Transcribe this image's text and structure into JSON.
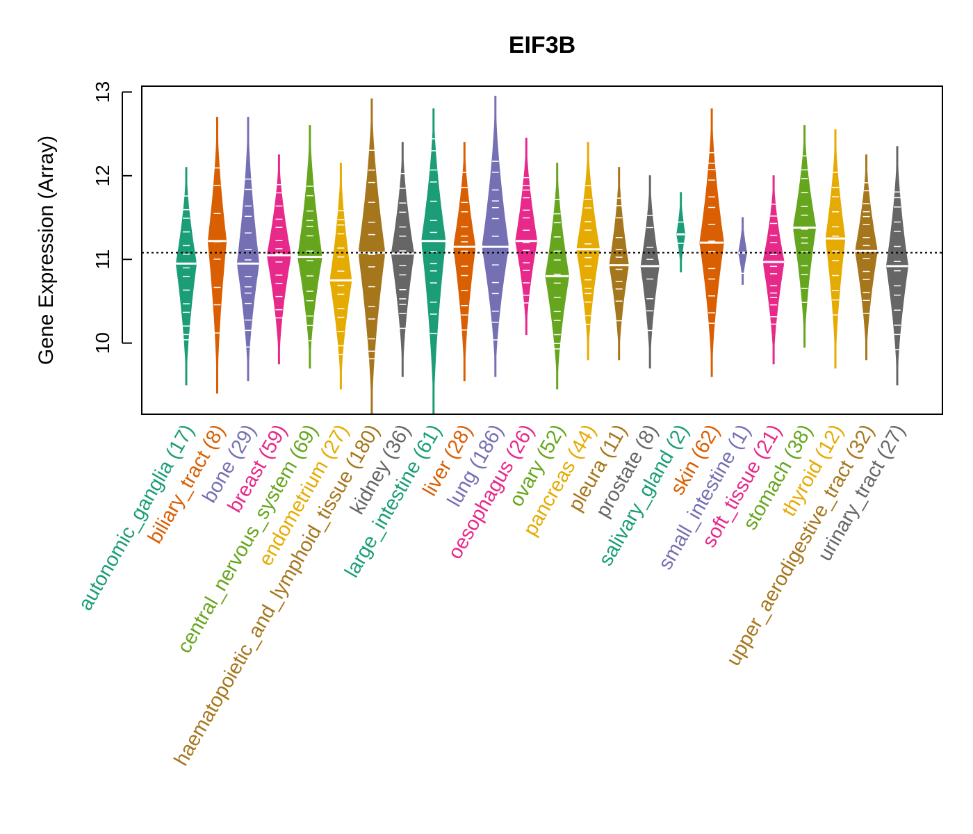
{
  "chart_data": {
    "type": "violin",
    "title": "EIF3B",
    "xlabel": "",
    "ylabel": "Gene Expression (Array)",
    "ylim": [
      9.15,
      13.07
    ],
    "yticks": [
      10,
      11,
      12,
      13
    ],
    "reference_line": 11.08,
    "grid": false,
    "categories": [
      {
        "name": "autonomic_ganglia",
        "n": 17,
        "label": "autonomic_ganglia (17)",
        "color": "#1B9E77",
        "median": 10.95,
        "min": 9.5,
        "max": 12.1
      },
      {
        "name": "biliary_tract",
        "n": 8,
        "label": "biliary_tract (8)",
        "color": "#D95F02",
        "median": 11.22,
        "min": 9.4,
        "max": 12.7
      },
      {
        "name": "bone",
        "n": 29,
        "label": "bone (29)",
        "color": "#7570B3",
        "median": 10.95,
        "min": 9.55,
        "max": 12.7
      },
      {
        "name": "breast",
        "n": 59,
        "label": "breast (59)",
        "color": "#E7298A",
        "median": 11.05,
        "min": 9.75,
        "max": 12.25
      },
      {
        "name": "central_nervous_system",
        "n": 69,
        "label": "central_nervous_system (69)",
        "color": "#66A61E",
        "median": 11.03,
        "min": 9.7,
        "max": 12.6
      },
      {
        "name": "endometrium",
        "n": 27,
        "label": "endometrium (27)",
        "color": "#E6AB02",
        "median": 10.75,
        "min": 9.45,
        "max": 12.15
      },
      {
        "name": "haematopoietic_and_lymphoid_tissue",
        "n": 180,
        "label": "haematopoietic_and_lymphoid_tissue (180)",
        "color": "#A6761D",
        "median": 11.08,
        "min": 9.15,
        "max": 12.92
      },
      {
        "name": "kidney",
        "n": 36,
        "label": "kidney (36)",
        "color": "#666666",
        "median": 11.07,
        "min": 9.6,
        "max": 12.4
      },
      {
        "name": "large_intestine",
        "n": 61,
        "label": "large_intestine (61)",
        "color": "#1B9E77",
        "median": 11.22,
        "min": 9.15,
        "max": 12.8
      },
      {
        "name": "liver",
        "n": 28,
        "label": "liver (28)",
        "color": "#D95F02",
        "median": 11.15,
        "min": 9.55,
        "max": 12.4
      },
      {
        "name": "lung",
        "n": 186,
        "label": "lung (186)",
        "color": "#7570B3",
        "median": 11.15,
        "min": 9.6,
        "max": 12.95
      },
      {
        "name": "oesophagus",
        "n": 26,
        "label": "oesophagus (26)",
        "color": "#E7298A",
        "median": 11.22,
        "min": 10.1,
        "max": 12.45
      },
      {
        "name": "ovary",
        "n": 52,
        "label": "ovary (52)",
        "color": "#66A61E",
        "median": 10.8,
        "min": 9.45,
        "max": 12.15
      },
      {
        "name": "pancreas",
        "n": 44,
        "label": "pancreas (44)",
        "color": "#E6AB02",
        "median": 11.12,
        "min": 9.8,
        "max": 12.4
      },
      {
        "name": "pleura",
        "n": 11,
        "label": "pleura (11)",
        "color": "#A6761D",
        "median": 10.93,
        "min": 9.8,
        "max": 12.1
      },
      {
        "name": "prostate",
        "n": 8,
        "label": "prostate (8)",
        "color": "#666666",
        "median": 10.92,
        "min": 9.7,
        "max": 12.0
      },
      {
        "name": "salivary_gland",
        "n": 2,
        "label": "salivary_gland (2)",
        "color": "#1B9E77",
        "median": 11.3,
        "min": 10.85,
        "max": 11.8
      },
      {
        "name": "skin",
        "n": 62,
        "label": "skin (62)",
        "color": "#D95F02",
        "median": 11.2,
        "min": 9.6,
        "max": 12.8
      },
      {
        "name": "small_intestine",
        "n": 1,
        "label": "small_intestine (1)",
        "color": "#7570B3",
        "median": 11.08,
        "min": 10.7,
        "max": 11.5
      },
      {
        "name": "soft_tissue",
        "n": 21,
        "label": "soft_tissue (21)",
        "color": "#E7298A",
        "median": 10.97,
        "min": 9.75,
        "max": 12.0
      },
      {
        "name": "stomach",
        "n": 38,
        "label": "stomach (38)",
        "color": "#66A61E",
        "median": 11.38,
        "min": 9.95,
        "max": 12.6
      },
      {
        "name": "thyroid",
        "n": 12,
        "label": "thyroid (12)",
        "color": "#E6AB02",
        "median": 11.25,
        "min": 9.7,
        "max": 12.55
      },
      {
        "name": "upper_aerodigestive_tract",
        "n": 32,
        "label": "upper_aerodigestive_tract (32)",
        "color": "#A6761D",
        "median": 11.1,
        "min": 9.8,
        "max": 12.25
      },
      {
        "name": "urinary_tract",
        "n": 27,
        "label": "urinary_tract (27)",
        "color": "#666666",
        "median": 10.92,
        "min": 9.5,
        "max": 12.35
      }
    ]
  }
}
